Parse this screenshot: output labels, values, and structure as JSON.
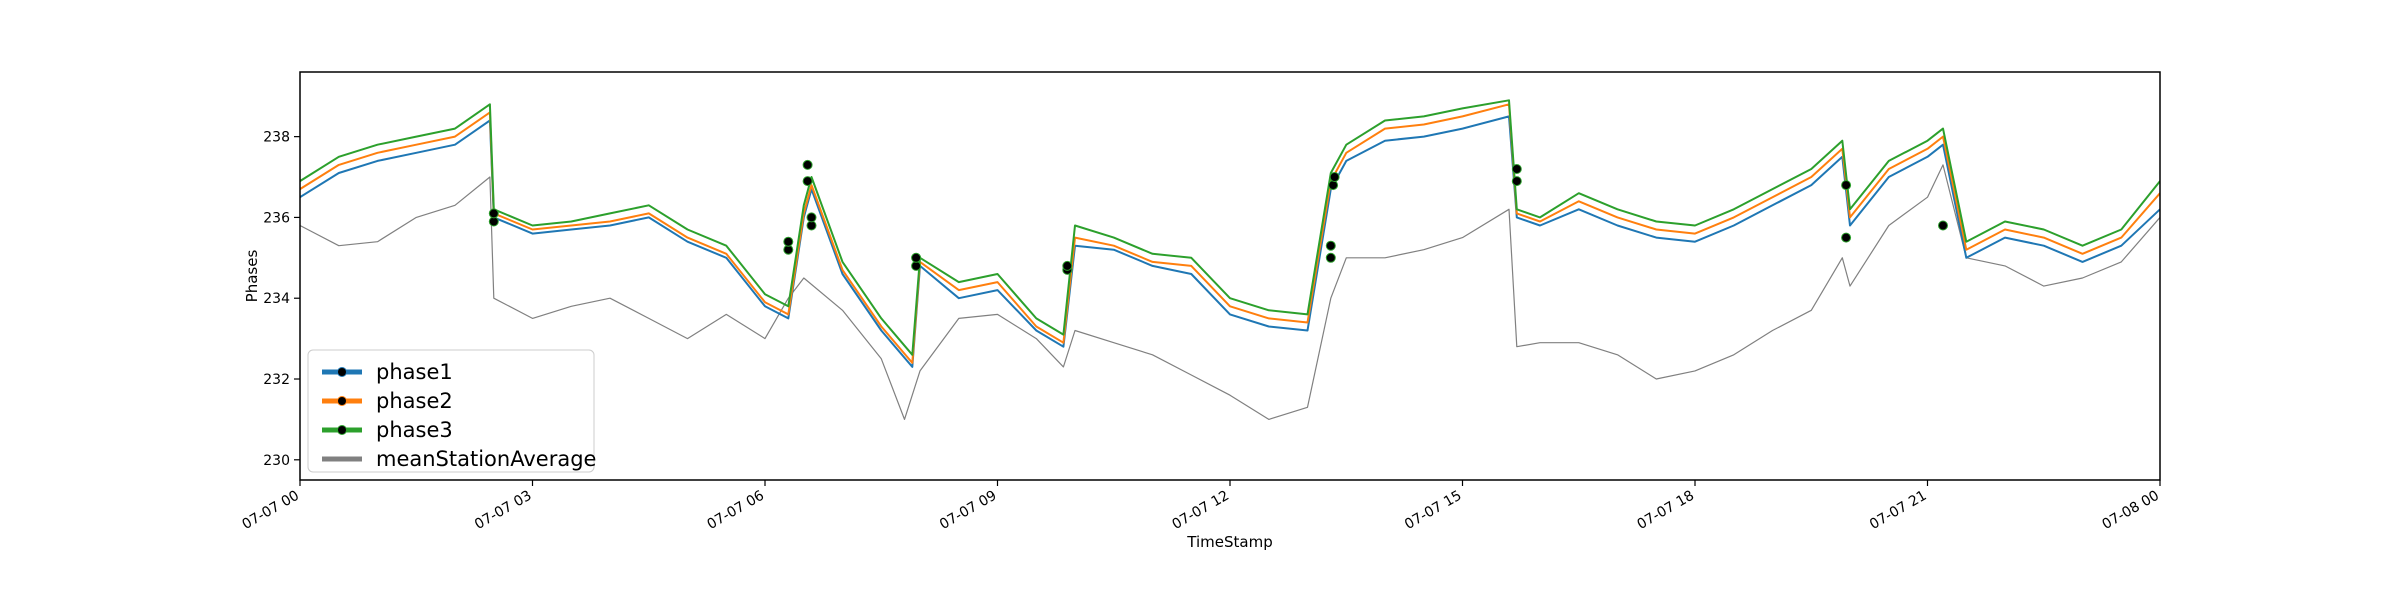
{
  "chart_data": {
    "type": "line",
    "title": "",
    "xlabel": "TimeStamp",
    "ylabel": "Phases",
    "x_range": [
      "07-07 00:00",
      "07-08 00:00"
    ],
    "ylim": [
      229.5,
      239.6
    ],
    "x_tick_labels": [
      "07-07 00",
      "07-07 03",
      "07-07 06",
      "07-07 09",
      "07-07 12",
      "07-07 15",
      "07-07 18",
      "07-07 21",
      "07-08 00"
    ],
    "x_tick_hours": [
      0,
      3,
      6,
      9,
      12,
      15,
      18,
      21,
      24
    ],
    "y_ticks": [
      230,
      232,
      234,
      236,
      238
    ],
    "y_tick_labels": [
      "230",
      "232",
      "234",
      "236",
      "238"
    ],
    "grid": false,
    "legend_position": "lower-left",
    "series": [
      {
        "name": "phase1",
        "color": "#1f77b4",
        "x_hours": [
          0,
          0.5,
          1.0,
          1.5,
          2.0,
          2.45,
          2.5,
          3.0,
          3.5,
          4.0,
          4.5,
          5.0,
          5.5,
          6.0,
          6.3,
          6.5,
          6.6,
          7.0,
          7.5,
          7.9,
          8.0,
          8.5,
          9.0,
          9.5,
          9.85,
          10.0,
          10.5,
          11.0,
          11.5,
          12.0,
          12.5,
          13.0,
          13.3,
          13.5,
          14.0,
          14.5,
          15.0,
          15.6,
          15.7,
          16.0,
          16.5,
          17.0,
          17.5,
          18.0,
          18.5,
          19.0,
          19.5,
          19.9,
          20.0,
          20.5,
          21.0,
          21.2,
          21.5,
          22.0,
          22.5,
          23.0,
          23.5,
          24.0
        ],
        "y": [
          236.5,
          237.1,
          237.4,
          237.6,
          237.8,
          238.4,
          236.0,
          235.6,
          235.7,
          235.8,
          236.0,
          235.4,
          235.0,
          233.8,
          233.5,
          236.0,
          236.7,
          234.6,
          233.2,
          232.3,
          234.8,
          234.0,
          234.2,
          233.2,
          232.8,
          235.3,
          235.2,
          234.8,
          234.6,
          233.6,
          233.3,
          233.2,
          236.7,
          237.4,
          237.9,
          238.0,
          238.2,
          238.5,
          236.0,
          235.8,
          236.2,
          235.8,
          235.5,
          235.4,
          235.8,
          236.3,
          236.8,
          237.5,
          235.8,
          237.0,
          237.5,
          237.8,
          235.0,
          235.5,
          235.3,
          234.9,
          235.3,
          236.2
        ]
      },
      {
        "name": "phase2",
        "color": "#ff7f0e",
        "x_hours": [
          0,
          0.5,
          1.0,
          1.5,
          2.0,
          2.45,
          2.5,
          3.0,
          3.5,
          4.0,
          4.5,
          5.0,
          5.5,
          6.0,
          6.3,
          6.5,
          6.6,
          7.0,
          7.5,
          7.9,
          8.0,
          8.5,
          9.0,
          9.5,
          9.85,
          10.0,
          10.5,
          11.0,
          11.5,
          12.0,
          12.5,
          13.0,
          13.3,
          13.5,
          14.0,
          14.5,
          15.0,
          15.6,
          15.7,
          16.0,
          16.5,
          17.0,
          17.5,
          18.0,
          18.5,
          19.0,
          19.5,
          19.9,
          20.0,
          20.5,
          21.0,
          21.2,
          21.5,
          22.0,
          22.5,
          23.0,
          23.5,
          24.0
        ],
        "y": [
          236.7,
          237.3,
          237.6,
          237.8,
          238.0,
          238.6,
          236.1,
          235.7,
          235.8,
          235.9,
          236.1,
          235.5,
          235.1,
          233.9,
          233.6,
          236.1,
          236.8,
          234.7,
          233.3,
          232.4,
          234.9,
          234.2,
          234.4,
          233.3,
          232.9,
          235.5,
          235.3,
          234.9,
          234.8,
          233.8,
          233.5,
          233.4,
          236.9,
          237.6,
          238.2,
          238.3,
          238.5,
          238.8,
          236.1,
          235.9,
          236.4,
          236.0,
          235.7,
          235.6,
          236.0,
          236.5,
          237.0,
          237.7,
          236.0,
          237.2,
          237.7,
          238.0,
          235.2,
          235.7,
          235.5,
          235.1,
          235.5,
          236.6
        ]
      },
      {
        "name": "phase3",
        "color": "#2ca02c",
        "x_hours": [
          0,
          0.5,
          1.0,
          1.5,
          2.0,
          2.45,
          2.5,
          3.0,
          3.5,
          4.0,
          4.5,
          5.0,
          5.5,
          6.0,
          6.3,
          6.5,
          6.6,
          7.0,
          7.5,
          7.9,
          8.0,
          8.5,
          9.0,
          9.5,
          9.85,
          10.0,
          10.5,
          11.0,
          11.5,
          12.0,
          12.5,
          13.0,
          13.3,
          13.5,
          14.0,
          14.5,
          15.0,
          15.6,
          15.7,
          16.0,
          16.5,
          17.0,
          17.5,
          18.0,
          18.5,
          19.0,
          19.5,
          19.9,
          20.0,
          20.5,
          21.0,
          21.2,
          21.5,
          22.0,
          22.5,
          23.0,
          23.5,
          24.0
        ],
        "y": [
          236.9,
          237.5,
          237.8,
          238.0,
          238.2,
          238.8,
          236.2,
          235.8,
          235.9,
          236.1,
          236.3,
          235.7,
          235.3,
          234.1,
          233.8,
          236.3,
          237.0,
          234.9,
          233.5,
          232.6,
          235.0,
          234.4,
          234.6,
          233.5,
          233.1,
          235.8,
          235.5,
          235.1,
          235.0,
          234.0,
          233.7,
          233.6,
          237.1,
          237.8,
          238.4,
          238.5,
          238.7,
          238.9,
          236.2,
          236.0,
          236.6,
          236.2,
          235.9,
          235.8,
          236.2,
          236.7,
          237.2,
          237.9,
          236.2,
          237.4,
          237.9,
          238.2,
          235.4,
          235.9,
          235.7,
          235.3,
          235.7,
          236.9
        ]
      },
      {
        "name": "meanStationAverage",
        "color": "#808080",
        "x_hours": [
          0,
          0.5,
          1.0,
          1.5,
          2.0,
          2.45,
          2.5,
          3.0,
          3.5,
          4.0,
          4.5,
          5.0,
          5.5,
          6.0,
          6.3,
          6.5,
          7.0,
          7.5,
          7.8,
          8.0,
          8.5,
          9.0,
          9.5,
          9.85,
          10.0,
          10.5,
          11.0,
          11.5,
          12.0,
          12.5,
          13.0,
          13.3,
          13.5,
          14.0,
          14.5,
          15.0,
          15.6,
          15.7,
          16.0,
          16.5,
          17.0,
          17.5,
          18.0,
          18.5,
          19.0,
          19.5,
          19.9,
          20.0,
          20.5,
          21.0,
          21.2,
          21.5,
          22.0,
          22.5,
          23.0,
          23.5,
          24.0
        ],
        "y": [
          235.8,
          235.3,
          235.4,
          236.0,
          236.3,
          237.0,
          234.0,
          233.5,
          233.8,
          234.0,
          233.5,
          233.0,
          233.6,
          233.0,
          234.0,
          234.5,
          233.7,
          232.5,
          231.0,
          232.2,
          233.5,
          233.6,
          233.0,
          232.3,
          233.2,
          232.9,
          232.6,
          232.1,
          231.6,
          231.0,
          231.3,
          234.0,
          235.0,
          235.0,
          235.2,
          235.5,
          236.2,
          232.8,
          232.9,
          232.9,
          232.6,
          232.0,
          232.2,
          232.6,
          233.2,
          233.7,
          235.0,
          234.3,
          235.8,
          236.5,
          237.3,
          235.0,
          234.8,
          234.3,
          234.5,
          234.9,
          236.0
        ]
      }
    ],
    "markers": {
      "x_hours": [
        2.5,
        2.5,
        6.3,
        6.3,
        6.55,
        6.55,
        6.6,
        6.6,
        7.95,
        7.95,
        9.9,
        9.9,
        13.3,
        13.3,
        13.33,
        13.35,
        15.7,
        15.7,
        19.95,
        19.95,
        21.2
      ],
      "y": [
        235.9,
        236.1,
        235.2,
        235.4,
        237.3,
        236.9,
        235.8,
        236.0,
        234.8,
        235.0,
        234.7,
        234.8,
        235.0,
        235.3,
        236.8,
        237.0,
        236.9,
        237.2,
        235.5,
        236.8,
        235.8
      ]
    }
  }
}
